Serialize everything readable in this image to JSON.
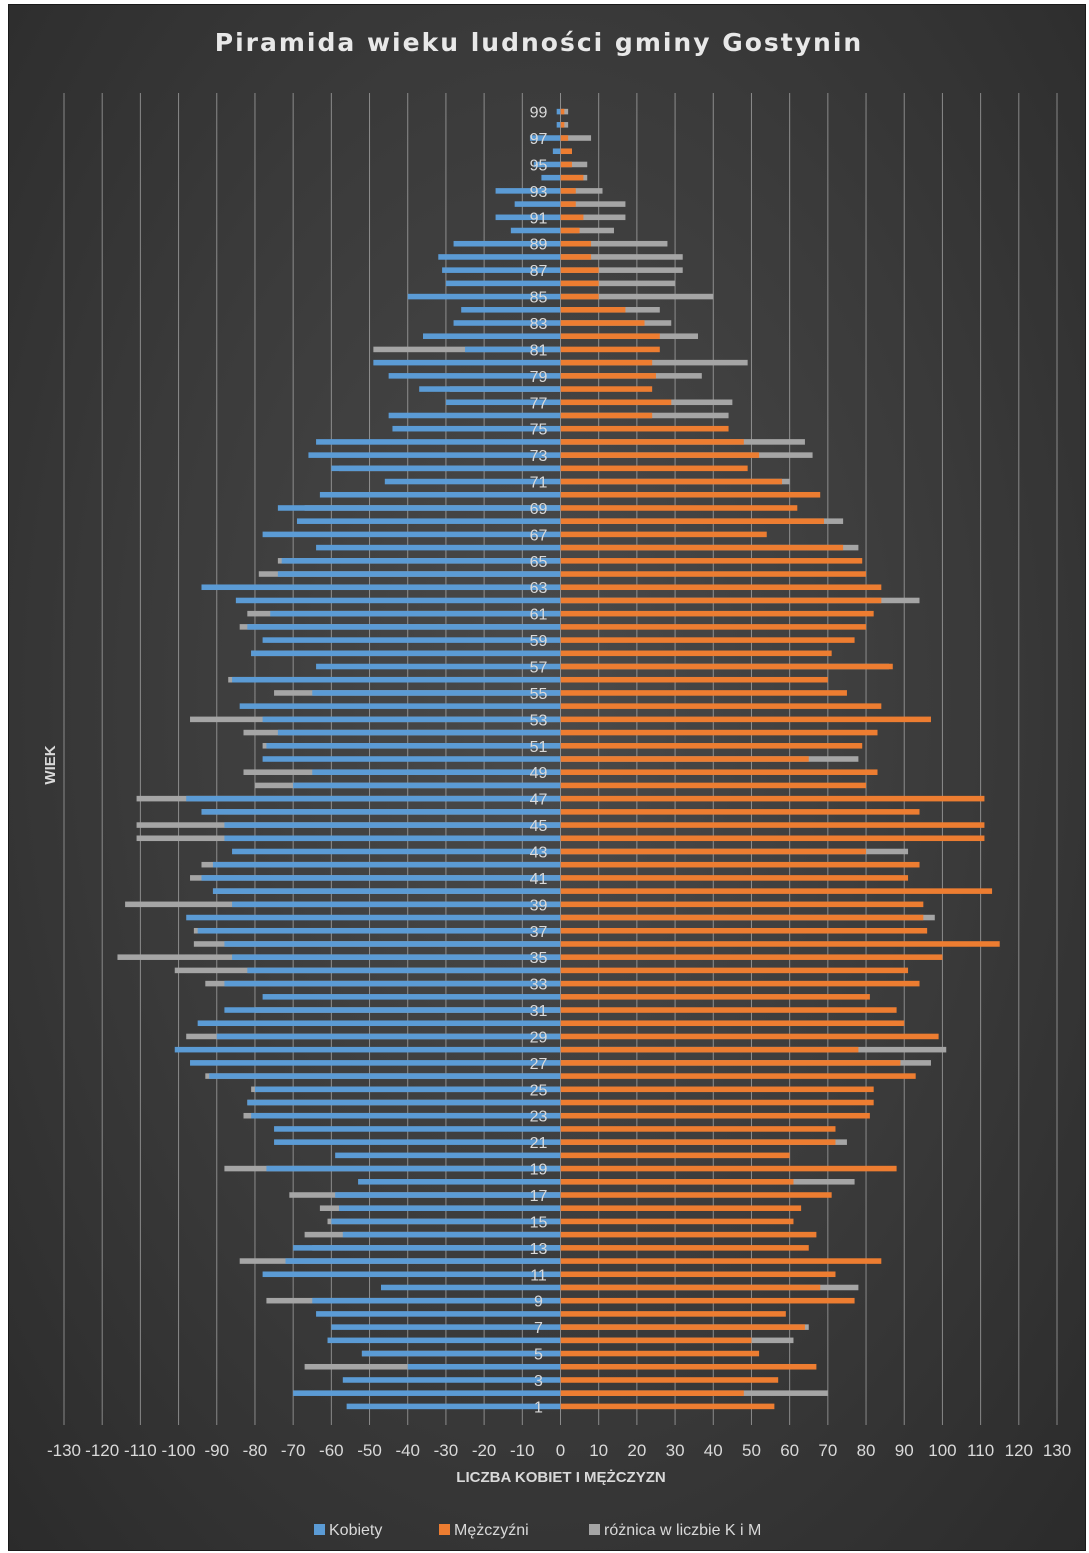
{
  "chart_data": {
    "type": "bar",
    "title": "Piramida wieku ludności gminy Gostynin",
    "xlabel": "LICZBA KOBIET I MĘŻCZYZN",
    "ylabel": "WIEK",
    "xlim": [
      -130,
      130
    ],
    "x_ticks": [
      "130",
      "120",
      "110",
      "100",
      "90",
      "80",
      "70",
      "60",
      "50",
      "40",
      "30",
      "20",
      "10",
      "0",
      "10",
      "20",
      "30",
      "40",
      "50",
      "60",
      "70",
      "80",
      "90",
      "100",
      "110",
      "120",
      "130"
    ],
    "y_tick_labels": [
      "1",
      "3",
      "5",
      "7",
      "9",
      "11",
      "13",
      "15",
      "17",
      "19",
      "21",
      "23",
      "25",
      "27",
      "29",
      "31",
      "33",
      "35",
      "37",
      "39",
      "41",
      "43",
      "45",
      "47",
      "49",
      "51",
      "53",
      "55",
      "57",
      "59",
      "61",
      "63",
      "65",
      "67",
      "69",
      "71",
      "73",
      "75",
      "77",
      "79",
      "81",
      "83",
      "85",
      "87",
      "89",
      "91",
      "93",
      "95",
      "97",
      "99"
    ],
    "categories": [
      1,
      2,
      3,
      4,
      5,
      6,
      7,
      8,
      9,
      10,
      11,
      12,
      13,
      14,
      15,
      16,
      17,
      18,
      19,
      20,
      21,
      22,
      23,
      24,
      25,
      26,
      27,
      28,
      29,
      30,
      31,
      32,
      33,
      34,
      35,
      36,
      37,
      38,
      39,
      40,
      41,
      42,
      43,
      44,
      45,
      46,
      47,
      48,
      49,
      50,
      51,
      52,
      53,
      54,
      55,
      56,
      57,
      58,
      59,
      60,
      61,
      62,
      63,
      64,
      65,
      66,
      67,
      68,
      69,
      70,
      71,
      72,
      73,
      74,
      75,
      76,
      77,
      78,
      79,
      80,
      81,
      82,
      83,
      84,
      85,
      86,
      87,
      88,
      89,
      90,
      91,
      92,
      93,
      94,
      95,
      96,
      97,
      98,
      99
    ],
    "grid": true,
    "legend_position": "bottom",
    "series": [
      {
        "name": "Kobiety",
        "color": "#5b9bd5",
        "values": [
          -56,
          -70,
          -57,
          -40,
          -52,
          -61,
          -60,
          -64,
          -65,
          -47,
          -78,
          -72,
          -70,
          -57,
          -60,
          -58,
          -59,
          -53,
          -77,
          -59,
          -75,
          -75,
          -81,
          -82,
          -80,
          -92,
          -97,
          -101,
          -90,
          -95,
          -88,
          -78,
          -88,
          -82,
          -86,
          -88,
          -95,
          -98,
          -86,
          -91,
          -94,
          -91,
          -86,
          -88,
          -88,
          -94,
          -98,
          -70,
          -65,
          -78,
          -77,
          -74,
          -78,
          -84,
          -65,
          -86,
          -64,
          -81,
          -78,
          -82,
          -76,
          -85,
          -94,
          -74,
          -73,
          -64,
          -78,
          -69,
          -74,
          -63,
          -46,
          -60,
          -66,
          -64,
          -44,
          -45,
          -30,
          -37,
          -45,
          -49,
          -25,
          -36,
          -28,
          -26,
          -40,
          -30,
          -31,
          -32,
          -28,
          -13,
          -17,
          -12,
          -17,
          -5,
          -7,
          -2,
          -8,
          -1,
          -1
        ]
      },
      {
        "name": "Mężczyźni",
        "color": "#ed7d31",
        "values": [
          56,
          48,
          57,
          67,
          52,
          50,
          64,
          59,
          77,
          68,
          72,
          84,
          65,
          67,
          61,
          63,
          71,
          61,
          88,
          60,
          72,
          72,
          81,
          82,
          82,
          93,
          89,
          78,
          99,
          90,
          88,
          81,
          94,
          91,
          100,
          115,
          96,
          95,
          95,
          113,
          91,
          94,
          80,
          111,
          111,
          94,
          111,
          80,
          83,
          65,
          79,
          83,
          97,
          84,
          75,
          70,
          87,
          71,
          77,
          80,
          82,
          84,
          84,
          80,
          79,
          74,
          54,
          69,
          62,
          68,
          58,
          49,
          52,
          48,
          44,
          24,
          29,
          24,
          25,
          24,
          26,
          26,
          22,
          17,
          10,
          10,
          10,
          8,
          8,
          5,
          6,
          4,
          4,
          6,
          3,
          3,
          2,
          1,
          1
        ]
      },
      {
        "name": "różnica w liczbie K i M",
        "color": "#a5a5a5",
        "values": [
          0,
          70,
          0,
          -67,
          -52,
          61,
          65,
          0,
          -77,
          78,
          0,
          -84,
          -65,
          -67,
          -61,
          -63,
          -71,
          77,
          -88,
          0,
          75,
          0,
          -83,
          -82,
          -81,
          -93,
          97,
          101,
          -98,
          88,
          -80,
          0,
          -93,
          -101,
          -116,
          -96,
          -96,
          98,
          -114,
          -91,
          -97,
          -94,
          91,
          -111,
          -111,
          -94,
          -111,
          -80,
          -83,
          78,
          -78,
          -83,
          -97,
          0,
          -75,
          -87,
          86,
          -81,
          0,
          -84,
          -82,
          94,
          -80,
          -79,
          -74,
          78,
          0,
          74,
          -67,
          0,
          60,
          -58,
          66,
          64,
          0,
          44,
          45,
          -29,
          37,
          49,
          -49,
          36,
          29,
          26,
          40,
          30,
          32,
          32,
          28,
          14,
          17,
          17,
          11,
          7,
          7,
          3,
          8,
          2,
          2
        ]
      }
    ]
  },
  "legend": [
    {
      "label": "Kobiety",
      "color": "#5b9bd5"
    },
    {
      "label": "Mężczyźni",
      "color": "#ed7d31"
    },
    {
      "label": "różnica w liczbie K i M",
      "color": "#a5a5a5"
    }
  ]
}
